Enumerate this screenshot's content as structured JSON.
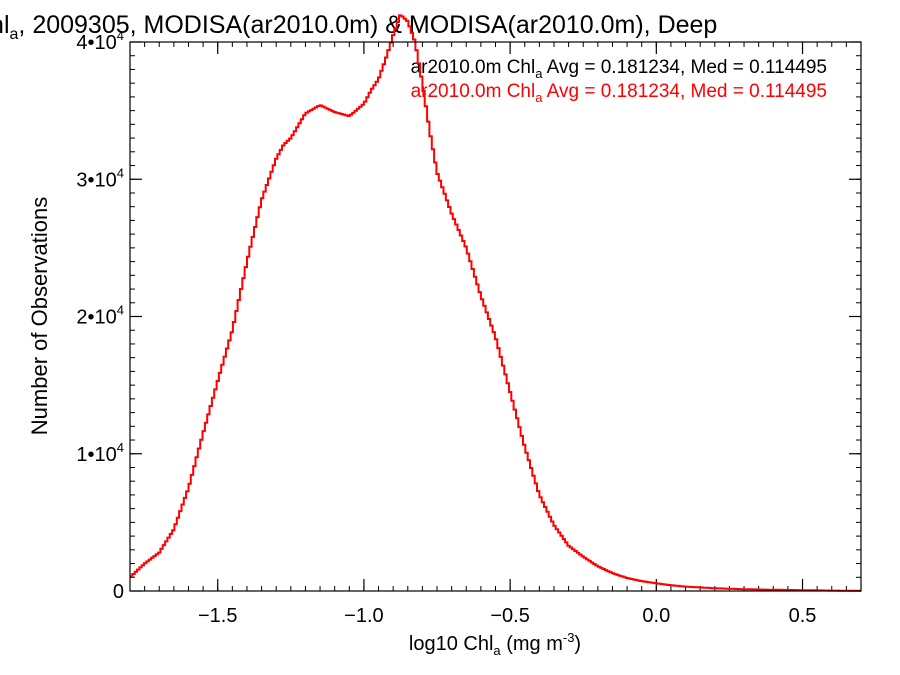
{
  "title": {
    "pre": "Chl",
    "sub": "a",
    "post": ", 2009305, MODISA(ar2010.0m) & MODISA(ar2010.0m), Deep"
  },
  "legend": {
    "placement": "top-right",
    "entries": [
      {
        "pre": "ar2010.0m Chl",
        "sub": "a",
        "post": " Avg = 0.181234, Med = 0.114495",
        "color": "#000000"
      },
      {
        "pre": "ar2010.0m Chl",
        "sub": "a",
        "post": " Avg = 0.181234, Med = 0.114495",
        "color": "#ff0000"
      }
    ]
  },
  "xlabel": {
    "pre": "log10 Chl",
    "sub": "a",
    "mid": " (mg m",
    "sup": "-3",
    "post": ")"
  },
  "ylabel": "Number of Observations",
  "chart_data": {
    "type": "line",
    "step": true,
    "grid": false,
    "xlim": [
      -1.8,
      0.7
    ],
    "ylim": [
      0,
      40000
    ],
    "xticks": [
      {
        "v": -1.5,
        "label": "−1.5"
      },
      {
        "v": -1.0,
        "label": "−1.0"
      },
      {
        "v": -0.5,
        "label": "−0.5"
      },
      {
        "v": 0.0,
        "label": "0.0"
      },
      {
        "v": 0.5,
        "label": "0.5"
      }
    ],
    "yticks": [
      {
        "v": 0,
        "label": "0",
        "exp": ""
      },
      {
        "v": 10000,
        "label": "1•10",
        "exp": "4"
      },
      {
        "v": 20000,
        "label": "2•10",
        "exp": "4"
      },
      {
        "v": 30000,
        "label": "3•10",
        "exp": "4"
      },
      {
        "v": 40000,
        "label": "4•10",
        "exp": "4"
      }
    ],
    "series": [
      {
        "color": "#ff0000",
        "x": [
          -1.8,
          -1.75,
          -1.7,
          -1.65,
          -1.6,
          -1.55,
          -1.5,
          -1.45,
          -1.4,
          -1.35,
          -1.3,
          -1.275,
          -1.25,
          -1.2,
          -1.15,
          -1.1,
          -1.05,
          -1.0,
          -0.975,
          -0.95,
          -0.925,
          -0.9,
          -0.875,
          -0.85,
          -0.825,
          -0.8,
          -0.775,
          -0.75,
          -0.7,
          -0.65,
          -0.6,
          -0.55,
          -0.5,
          -0.45,
          -0.4,
          -0.35,
          -0.3,
          -0.25,
          -0.2,
          -0.15,
          -0.1,
          -0.05,
          0.0,
          0.05,
          0.1,
          0.2,
          0.3,
          0.4,
          0.5,
          0.6,
          0.7
        ],
        "values": [
          1000,
          2000,
          2800,
          4500,
          7500,
          11500,
          15300,
          19000,
          24000,
          28500,
          31500,
          32500,
          33000,
          34800,
          35400,
          34900,
          34600,
          35500,
          36500,
          37300,
          38800,
          40500,
          42000,
          41500,
          40000,
          37000,
          33500,
          30500,
          27500,
          25000,
          21500,
          18500,
          14500,
          10500,
          7000,
          4800,
          3300,
          2500,
          1800,
          1300,
          950,
          720,
          560,
          420,
          320,
          200,
          130,
          90,
          60,
          30,
          10
        ]
      }
    ]
  }
}
